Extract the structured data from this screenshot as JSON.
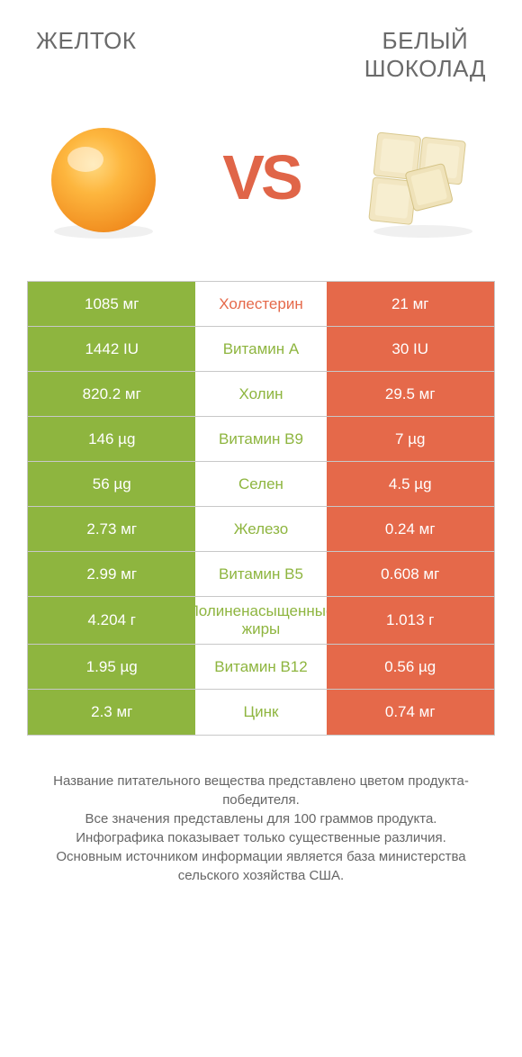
{
  "colors": {
    "left_bg": "#8eb53f",
    "right_bg": "#e5694a",
    "mid_left_text": "#e5694a",
    "mid_right_text": "#8eb53f",
    "title": "#6a6a6a",
    "vs": "#e06548"
  },
  "titles": {
    "left": "ЖЕЛТОК",
    "right_line1": "БЕЛЫЙ",
    "right_line2": "ШОКОЛАД",
    "vs": "VS"
  },
  "rows": [
    {
      "left": "1085 мг",
      "mid": "Холестерин",
      "right": "21 мг",
      "mid_color": "left"
    },
    {
      "left": "1442 IU",
      "mid": "Витамин A",
      "right": "30 IU",
      "mid_color": "right"
    },
    {
      "left": "820.2 мг",
      "mid": "Холин",
      "right": "29.5 мг",
      "mid_color": "right"
    },
    {
      "left": "146 µg",
      "mid": "Витамин B9",
      "right": "7 µg",
      "mid_color": "right"
    },
    {
      "left": "56 µg",
      "mid": "Селен",
      "right": "4.5 µg",
      "mid_color": "right"
    },
    {
      "left": "2.73 мг",
      "mid": "Железо",
      "right": "0.24 мг",
      "mid_color": "right"
    },
    {
      "left": "2.99 мг",
      "mid": "Витамин B5",
      "right": "0.608 мг",
      "mid_color": "right"
    },
    {
      "left": "4.204 г",
      "mid": "Полиненасыщенные жиры",
      "right": "1.013 г",
      "mid_color": "right"
    },
    {
      "left": "1.95 µg",
      "mid": "Витамин B12",
      "right": "0.56 µg",
      "mid_color": "right"
    },
    {
      "left": "2.3 мг",
      "mid": "Цинк",
      "right": "0.74 мг",
      "mid_color": "right"
    }
  ],
  "footer": "Название питательного вещества представлено цветом продукта-победителя.\nВсе значения представлены для 100 граммов продукта.\nИнфографика показывает только существенные различия.\nОсновным источником информации является база министерства сельского хозяйства США."
}
